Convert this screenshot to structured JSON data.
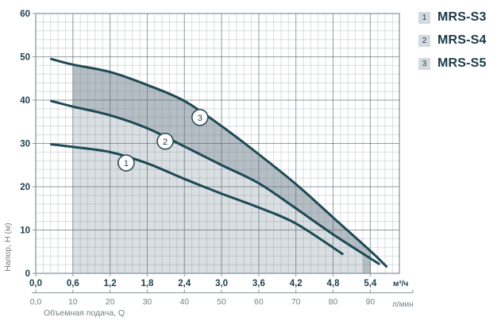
{
  "colors": {
    "curve": "#1d4a53",
    "label_dark": "#1d3f4d",
    "label_gray": "#758086",
    "border": "#8c97a0",
    "grid_major": "rgba(90,104,114,0.55)",
    "grid_minor": "rgba(96,110,120,0.22)",
    "region_dark": "#b6bec5",
    "region_light": "#dadfe3",
    "marker_fill": "#ffffff",
    "marker_stroke": "#2e4e5a",
    "secondary_axis": "#8a949c"
  },
  "legend": {
    "items": [
      {
        "num": "1",
        "label": "MRS-S3"
      },
      {
        "num": "2",
        "label": "MRS-S4"
      },
      {
        "num": "3",
        "label": "MRS-S5"
      }
    ]
  },
  "chart_data": {
    "type": "line",
    "title": "",
    "xlabel": "Объемная подача, Q",
    "ylabel": "Напор, H (м)",
    "x_unit_primary": "м³/ч",
    "x_unit_secondary": "л/мин",
    "xlim": [
      0,
      5.87
    ],
    "ylim": [
      0,
      60
    ],
    "grid": {
      "minor_x_step": 0.12,
      "minor_y_step": 2,
      "major_x_step": 0.6,
      "major_y_step": 10
    },
    "x_ticks_primary": {
      "labels": [
        "0,0",
        "0,6",
        "1,2",
        "1,8",
        "2,4",
        "3,0",
        "3,6",
        "4,2",
        "4,8",
        "5,4"
      ],
      "values": [
        0,
        0.6,
        1.2,
        1.8,
        2.4,
        3.0,
        3.6,
        4.2,
        4.8,
        5.4
      ]
    },
    "x_ticks_secondary": {
      "labels": [
        "0,0",
        "10",
        "20",
        "30",
        "40",
        "50",
        "60",
        "70",
        "80",
        "90"
      ],
      "values": [
        0,
        0.6,
        1.2,
        1.8,
        2.4,
        3.0,
        3.6,
        4.2,
        4.8,
        5.4
      ]
    },
    "y_ticks": [
      0,
      10,
      20,
      30,
      40,
      50,
      60
    ],
    "series": [
      {
        "id": "1",
        "name": "MRS-S3",
        "points": [
          [
            0.25,
            29.8
          ],
          [
            0.6,
            29.2
          ],
          [
            1.2,
            28.0
          ],
          [
            1.8,
            25.4
          ],
          [
            2.4,
            21.8
          ],
          [
            3.0,
            18.4
          ],
          [
            3.6,
            15.2
          ],
          [
            4.2,
            11.5
          ],
          [
            4.95,
            4.5
          ]
        ]
      },
      {
        "id": "2",
        "name": "MRS-S4",
        "points": [
          [
            0.25,
            39.8
          ],
          [
            0.6,
            38.5
          ],
          [
            1.2,
            36.5
          ],
          [
            1.8,
            33.5
          ],
          [
            2.4,
            29.3
          ],
          [
            3.0,
            25.0
          ],
          [
            3.6,
            20.8
          ],
          [
            4.2,
            15.0
          ],
          [
            4.8,
            9.0
          ],
          [
            5.54,
            2.2
          ]
        ]
      },
      {
        "id": "3",
        "name": "MRS-S5",
        "points": [
          [
            0.25,
            49.5
          ],
          [
            0.6,
            48.2
          ],
          [
            1.2,
            46.5
          ],
          [
            1.8,
            43.5
          ],
          [
            2.4,
            39.8
          ],
          [
            3.0,
            34.0
          ],
          [
            3.6,
            27.5
          ],
          [
            4.2,
            20.6
          ],
          [
            4.8,
            12.9
          ],
          [
            5.4,
            5.2
          ],
          [
            5.66,
            1.6
          ]
        ]
      }
    ],
    "regions": [
      {
        "name": "mrs-s5-operating-range",
        "top_series": "3",
        "x_start": 0.6,
        "x_end": 5.41,
        "fill": "#b6bec5"
      },
      {
        "name": "mrs-s4-operating-range",
        "top_series": "2",
        "x_start": 0.6,
        "x_end": 5.28,
        "fill": "#dadfe3"
      }
    ],
    "markers": [
      {
        "label": "1",
        "x": 1.46,
        "y": 25.5
      },
      {
        "label": "2",
        "x": 2.09,
        "y": 30.5
      },
      {
        "label": "3",
        "x": 2.65,
        "y": 36.0
      }
    ]
  }
}
